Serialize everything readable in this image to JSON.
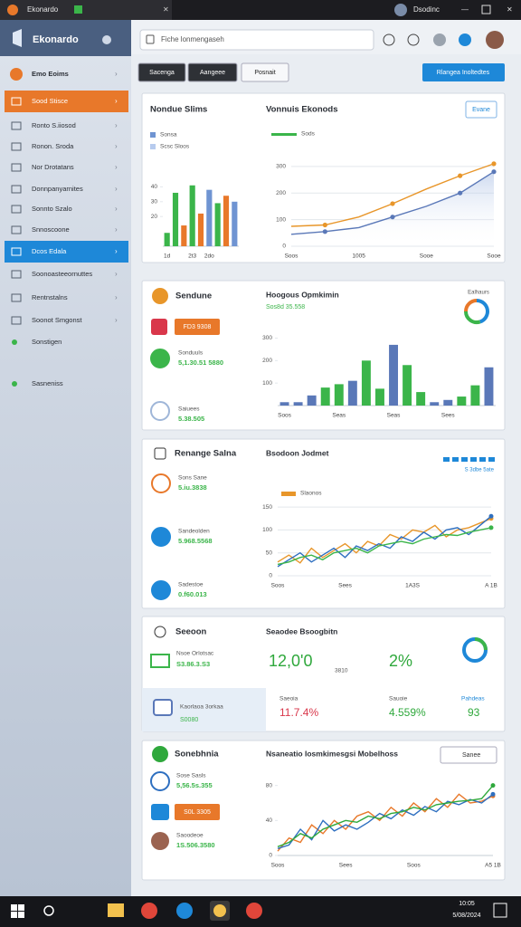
{
  "window": {
    "tab": "Ekonardo",
    "user": "Dsodinc"
  },
  "app": {
    "name": "Ekonardo",
    "search": "Fiche lonmengaseh"
  },
  "sidebar": {
    "items": [
      "Emo Eoims",
      "Sood Stisce",
      "Ronto S.iiosod",
      "Ronon. Sroda",
      "Nor Drotatans",
      "Donnpanyarnites",
      "Sonnto Szalo",
      "Snnoscoone",
      "Dcos Edala",
      "Soonoasteeornuttes",
      "Rentnstalns",
      "Soonot Smgonst",
      "Sonstigen",
      "Sasneniss"
    ],
    "highlighted": 1,
    "selected": 8
  },
  "toolbar": {
    "buttons": [
      "Sacenga",
      "Aangeee",
      "Posnait"
    ],
    "action": "Rlangea Inoltedtes"
  },
  "panels": [
    {
      "title": "Nondue Slims",
      "chart": {
        "type": "bar",
        "legend": [
          "Sonsa",
          "Scsc Sloos"
        ],
        "legend_colors": [
          "#6f94d2",
          "#b7cbee"
        ],
        "categories": [
          "1d",
          null,
          null,
          "2t3",
          null,
          "2do",
          null,
          null,
          null
        ],
        "values": [
          9,
          36,
          14,
          41,
          22,
          38,
          29,
          34,
          30
        ],
        "colors": [
          "#3bb54a",
          "#3bb54a",
          "#e8782a",
          "#3bb54a",
          "#e8782a",
          "#6f94d2",
          "#3bb54a",
          "#e8782a",
          "#6f94d2"
        ],
        "ylim": [
          0,
          50
        ],
        "yticks": [
          20,
          30,
          40
        ],
        "grid": false
      },
      "chart2": {
        "type": "line",
        "title": "Vonnuis Ekonods",
        "button": "Evane",
        "legend": "Sods",
        "categories": [
          "Soos",
          null,
          "1005",
          null,
          "Sooe",
          null,
          "Sooe"
        ],
        "series": [
          {
            "name": "Sods",
            "color": "#e8962a",
            "values": [
              75,
              80,
              110,
              160,
              215,
              265,
              310
            ]
          },
          {
            "color": "#5a78b8",
            "values": [
              45,
              55,
              70,
              110,
              150,
              200,
              280
            ]
          }
        ],
        "ylim": [
          0,
          330
        ],
        "yticks": [
          0,
          100,
          200,
          300
        ],
        "grid": true
      }
    },
    {
      "title": "Sendune",
      "badge": "FD3 9308",
      "items": [
        {
          "label": "Sonduuls",
          "value": "5,1.30.51 5880"
        },
        {
          "label": "Saiuees",
          "value": "5.38.505"
        }
      ],
      "chart": {
        "type": "bar",
        "title": "Hoogous Opmkimin",
        "subtitle": "Sos8d 35.558",
        "categories": [
          "Soos",
          null,
          null,
          null,
          "Seas",
          null,
          null,
          null,
          "Seas",
          null,
          null,
          null,
          "Sees",
          null,
          null,
          null
        ],
        "values": [
          15,
          15,
          45,
          80,
          95,
          110,
          200,
          75,
          270,
          180,
          60,
          15,
          25,
          40,
          90,
          170
        ],
        "colors": [
          "#5a78b8",
          "#5a78b8",
          "#5a78b8",
          "#3bb54a",
          "#3bb54a",
          "#5a78b8",
          "#3bb54a",
          "#3bb54a",
          "#5a78b8",
          "#3bb54a",
          "#3bb54a",
          "#5a78b8",
          "#5a78b8",
          "#3bb54a",
          "#3bb54a",
          "#5a78b8"
        ],
        "ylim": [
          0,
          330
        ],
        "yticks": [
          100,
          200,
          300
        ],
        "grid": false
      },
      "donut": {
        "legend": "Ealhaurs",
        "values": [
          45,
          30,
          25
        ],
        "colors": [
          "#1e88d8",
          "#3bb54a",
          "#e8782a"
        ]
      }
    },
    {
      "title": "Renange Salna",
      "items": [
        {
          "label": "Sons Sane",
          "value": "5.iu.3838"
        },
        {
          "label": "Sandeolden",
          "value": "5.968.5568"
        },
        {
          "label": "Sadestoe",
          "value": "0.f60.013"
        }
      ],
      "chart": {
        "type": "line",
        "title": "Bsodoon Jodmet",
        "legend": "Slaonos",
        "note": "S 3dbe 5ate",
        "categories": [
          "Soos",
          null,
          null,
          null,
          null,
          null,
          "Sees",
          null,
          null,
          null,
          null,
          null,
          "1A3S",
          null,
          null,
          null,
          null,
          null,
          null,
          "A 1B"
        ],
        "series": [
          {
            "name": "Slaonos",
            "color": "#e8962a",
            "values": [
              30,
              45,
              28,
              60,
              40,
              55,
              70,
              50,
              75,
              65,
              90,
              80,
              100,
              95,
              110,
              85,
              100,
              105,
              115,
              125
            ]
          },
          {
            "color": "#2e6fc0",
            "values": [
              20,
              35,
              50,
              30,
              45,
              60,
              40,
              65,
              55,
              70,
              60,
              85,
              75,
              95,
              80,
              100,
              105,
              90,
              110,
              130
            ]
          },
          {
            "color": "#3bb54a",
            "values": [
              25,
              30,
              40,
              45,
              35,
              50,
              55,
              60,
              50,
              65,
              70,
              75,
              70,
              80,
              85,
              90,
              88,
              95,
              100,
              105
            ]
          }
        ],
        "ylim": [
          0,
          170
        ],
        "yticks": [
          0,
          50,
          100,
          150
        ],
        "grid": true
      }
    },
    {
      "title": "Seeoon",
      "badge": "S3.86.3.S3",
      "subtitle": "Seaodee Bsoogbitn",
      "caption": "Nsoe Orlotsac",
      "kpi": "12,0'0",
      "kpi_note": "3810",
      "kpi2": "2%",
      "banner": {
        "label": "Kaorlaoa 3orkaa",
        "value": "S0080"
      },
      "stats": [
        {
          "label": "Saeoia",
          "value": "11.7.4%"
        },
        {
          "label": "Sauoie",
          "value": "4.559%"
        },
        {
          "label": "Pahdeas",
          "value": "93"
        }
      ]
    },
    {
      "title": "Sonebhnia",
      "badge": "S0L 3305",
      "items": [
        {
          "label": "Sose Sasls",
          "value": "5,56.5s.355"
        },
        {
          "label": "Saoodeoe",
          "value": "1S.506.3580"
        }
      ],
      "chart": {
        "type": "line",
        "title": "Nsaneatio Iosmkimesgsi Mobelhoss",
        "dropdown": "Sanee",
        "categories": [
          "Soos",
          null,
          null,
          null,
          null,
          null,
          "Sees",
          null,
          null,
          null,
          null,
          null,
          "Soos",
          null,
          null,
          null,
          null,
          null,
          null,
          "A5 1B"
        ],
        "series": [
          {
            "color": "#e8782a",
            "values": [
              5,
              20,
              15,
              35,
              25,
              40,
              30,
              45,
              50,
              40,
              55,
              45,
              60,
              50,
              65,
              55,
              70,
              60,
              62,
              68
            ]
          },
          {
            "color": "#2e6fc0",
            "values": [
              8,
              12,
              30,
              18,
              40,
              28,
              35,
              30,
              38,
              48,
              42,
              52,
              46,
              56,
              50,
              62,
              58,
              64,
              60,
              70
            ]
          },
          {
            "color": "#2fa83c",
            "values": [
              10,
              15,
              25,
              20,
              30,
              35,
              40,
              38,
              45,
              42,
              48,
              50,
              55,
              52,
              58,
              60,
              62,
              63,
              65,
              80
            ]
          }
        ],
        "ylim": [
          0,
          90
        ],
        "yticks": [
          0,
          40,
          80
        ],
        "grid": false
      }
    }
  ],
  "taskbar": {
    "time": "10:05",
    "date": "5/08/2024"
  }
}
